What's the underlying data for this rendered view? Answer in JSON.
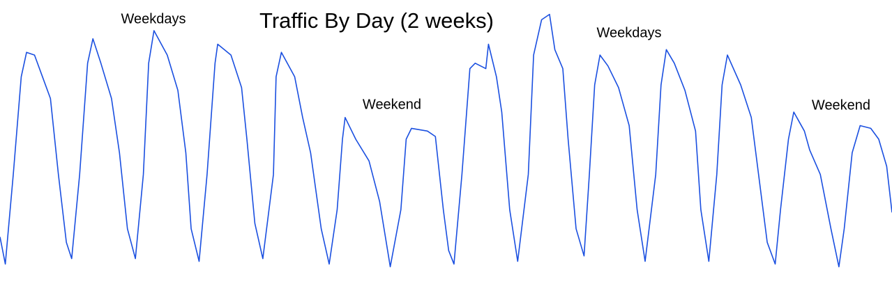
{
  "chart_data": {
    "type": "line",
    "title": "Traffic By Day (2 weeks)",
    "annotations": [
      "Weekdays",
      "Weekdays",
      "Weekend",
      "Weekend"
    ],
    "xlim": [
      0,
      336
    ],
    "ylim": [
      0,
      100
    ],
    "series": [
      {
        "color": "#1a4fe0",
        "x": [
          0,
          2,
          5,
          8,
          10,
          13,
          16,
          19,
          22,
          25,
          27,
          30,
          33,
          35,
          38,
          42,
          45,
          48,
          51,
          54,
          56,
          58,
          63,
          67,
          70,
          72,
          75,
          78,
          81,
          82,
          87,
          91,
          93,
          96,
          99,
          103,
          104,
          106,
          111,
          114,
          117,
          121,
          124,
          127,
          129,
          130,
          134,
          139,
          143,
          146,
          147,
          151,
          153,
          155,
          161,
          164,
          167,
          169,
          171,
          174,
          177,
          179,
          183,
          184,
          187,
          189,
          192,
          195,
          199,
          201,
          204,
          207,
          209,
          212,
          214,
          217,
          220,
          222,
          224,
          226,
          229,
          233,
          237,
          240,
          243,
          247,
          249,
          251,
          254,
          258,
          262,
          264,
          267,
          270,
          272,
          274,
          279,
          283,
          286,
          289,
          292,
          294,
          297,
          299,
          303,
          305,
          309,
          313,
          316,
          318,
          321,
          324,
          328,
          331,
          334,
          336
        ],
        "values": [
          14,
          4,
          37,
          73,
          82,
          81,
          73,
          65,
          37,
          12,
          6,
          37,
          78,
          87,
          78,
          65,
          45,
          17,
          6,
          37,
          78,
          90,
          81,
          68,
          45,
          17,
          5,
          37,
          78,
          85,
          81,
          69,
          50,
          19,
          6,
          37,
          73,
          82,
          73,
          58,
          45,
          17,
          4,
          24,
          50,
          58,
          50,
          42,
          27,
          9,
          3,
          24,
          50,
          54,
          53,
          51,
          24,
          9,
          4,
          37,
          76,
          78,
          76,
          85,
          73,
          60,
          24,
          5,
          37,
          81,
          94,
          96,
          83,
          76,
          50,
          17,
          7,
          37,
          70,
          81,
          77,
          69,
          55,
          24,
          5,
          37,
          70,
          83,
          78,
          68,
          53,
          24,
          5,
          37,
          70,
          81,
          70,
          58,
          35,
          12,
          4,
          24,
          50,
          60,
          53,
          46,
          37,
          17,
          3,
          17,
          45,
          55,
          54,
          50,
          40,
          23
        ]
      }
    ]
  }
}
